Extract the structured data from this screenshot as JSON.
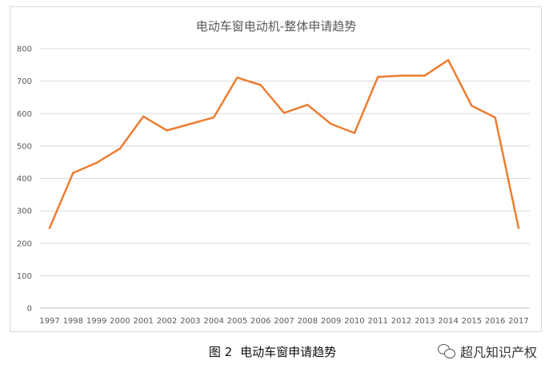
{
  "chart_data": {
    "type": "line",
    "title": "电动车窗电动机-整体申请趋势",
    "categories": [
      "1997",
      "1998",
      "1999",
      "2000",
      "2001",
      "2002",
      "2003",
      "2004",
      "2005",
      "2006",
      "2007",
      "2008",
      "2009",
      "2010",
      "2011",
      "2012",
      "2013",
      "2014",
      "2015",
      "2016",
      "2017"
    ],
    "series": [
      {
        "values": [
          247,
          417,
          448,
          492,
          591,
          548,
          568,
          588,
          711,
          688,
          602,
          627,
          568,
          540,
          713,
          717,
          717,
          765,
          624,
          588,
          247
        ]
      }
    ],
    "ylim": [
      0,
      800
    ],
    "yticks": [
      0,
      100,
      200,
      300,
      400,
      500,
      600,
      700,
      800
    ],
    "grid": true,
    "line_color": "#ED7D31"
  },
  "caption": {
    "figure_label": "图 2",
    "text": "电动车窗申请趋势"
  },
  "watermark": {
    "text": "超凡知识产权",
    "icon": "wechat-icon"
  }
}
